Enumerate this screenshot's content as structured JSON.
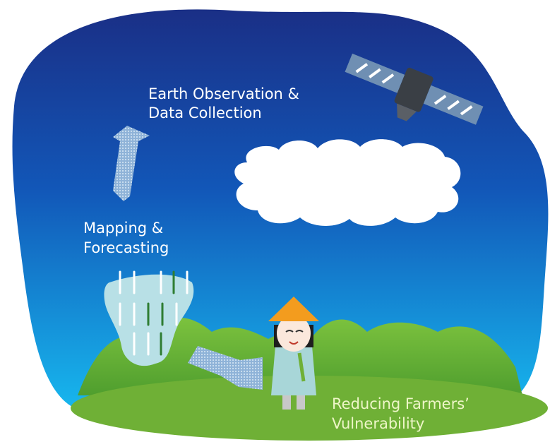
{
  "steps": [
    {
      "lines": [
        "Earth Observation &",
        "Data Collection"
      ]
    },
    {
      "lines": [
        "Mapping &",
        "Forecasting"
      ]
    },
    {
      "lines": [
        "Reducing Farmers’",
        "Vulnerability"
      ]
    }
  ]
}
